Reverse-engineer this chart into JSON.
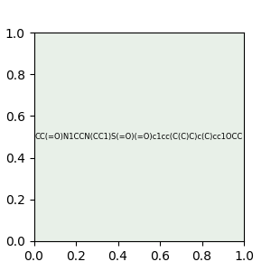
{
  "smiles": "CC(=O)N1CCN(CC1)S(=O)(=O)c1cc(C(C)C)c(C)cc1OCC",
  "bg_color": "#e8f0e8",
  "bond_color": "#2d6b5a",
  "n_color": "#2222ff",
  "o_color": "#ff0000",
  "s_color": "#cccc00",
  "font_size": 8
}
